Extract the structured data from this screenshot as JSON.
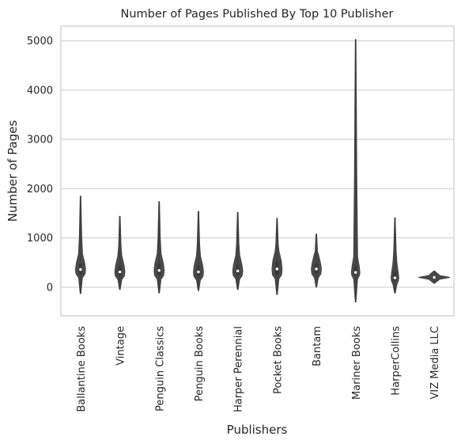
{
  "chart_data": {
    "type": "violin",
    "title": "Number of Pages Published By Top 10 Publisher",
    "xlabel": "Publishers",
    "ylabel": "Number of Pages",
    "ylim": [
      -580,
      5300
    ],
    "yticks": [
      0,
      1000,
      2000,
      3000,
      4000,
      5000
    ],
    "grid": true,
    "color": "#4a4a4a",
    "categories": [
      "Ballantine Books",
      "Vintage",
      "Penguin Classics",
      "Penguin Books",
      "Harper Perennial",
      "Pocket Books",
      "Bantam",
      "Mariner Books",
      "HarperCollins",
      "VIZ Media LLC"
    ],
    "series": [
      {
        "min": -130,
        "max": 1850,
        "median": 360,
        "q1": 270,
        "q3": 480
      },
      {
        "min": -50,
        "max": 1440,
        "median": 310,
        "q1": 230,
        "q3": 440
      },
      {
        "min": -120,
        "max": 1740,
        "median": 340,
        "q1": 240,
        "q3": 480
      },
      {
        "min": -70,
        "max": 1540,
        "median": 310,
        "q1": 220,
        "q3": 440
      },
      {
        "min": -50,
        "max": 1520,
        "median": 330,
        "q1": 240,
        "q3": 450
      },
      {
        "min": -150,
        "max": 1400,
        "median": 370,
        "q1": 250,
        "q3": 530
      },
      {
        "min": 0,
        "max": 1080,
        "median": 370,
        "q1": 270,
        "q3": 480
      },
      {
        "min": -300,
        "max": 5030,
        "median": 300,
        "q1": 240,
        "q3": 420
      },
      {
        "min": -120,
        "max": 1410,
        "median": 190,
        "q1": 130,
        "q3": 300
      },
      {
        "min": 80,
        "max": 330,
        "median": 200,
        "q1": 180,
        "q3": 220
      }
    ]
  }
}
